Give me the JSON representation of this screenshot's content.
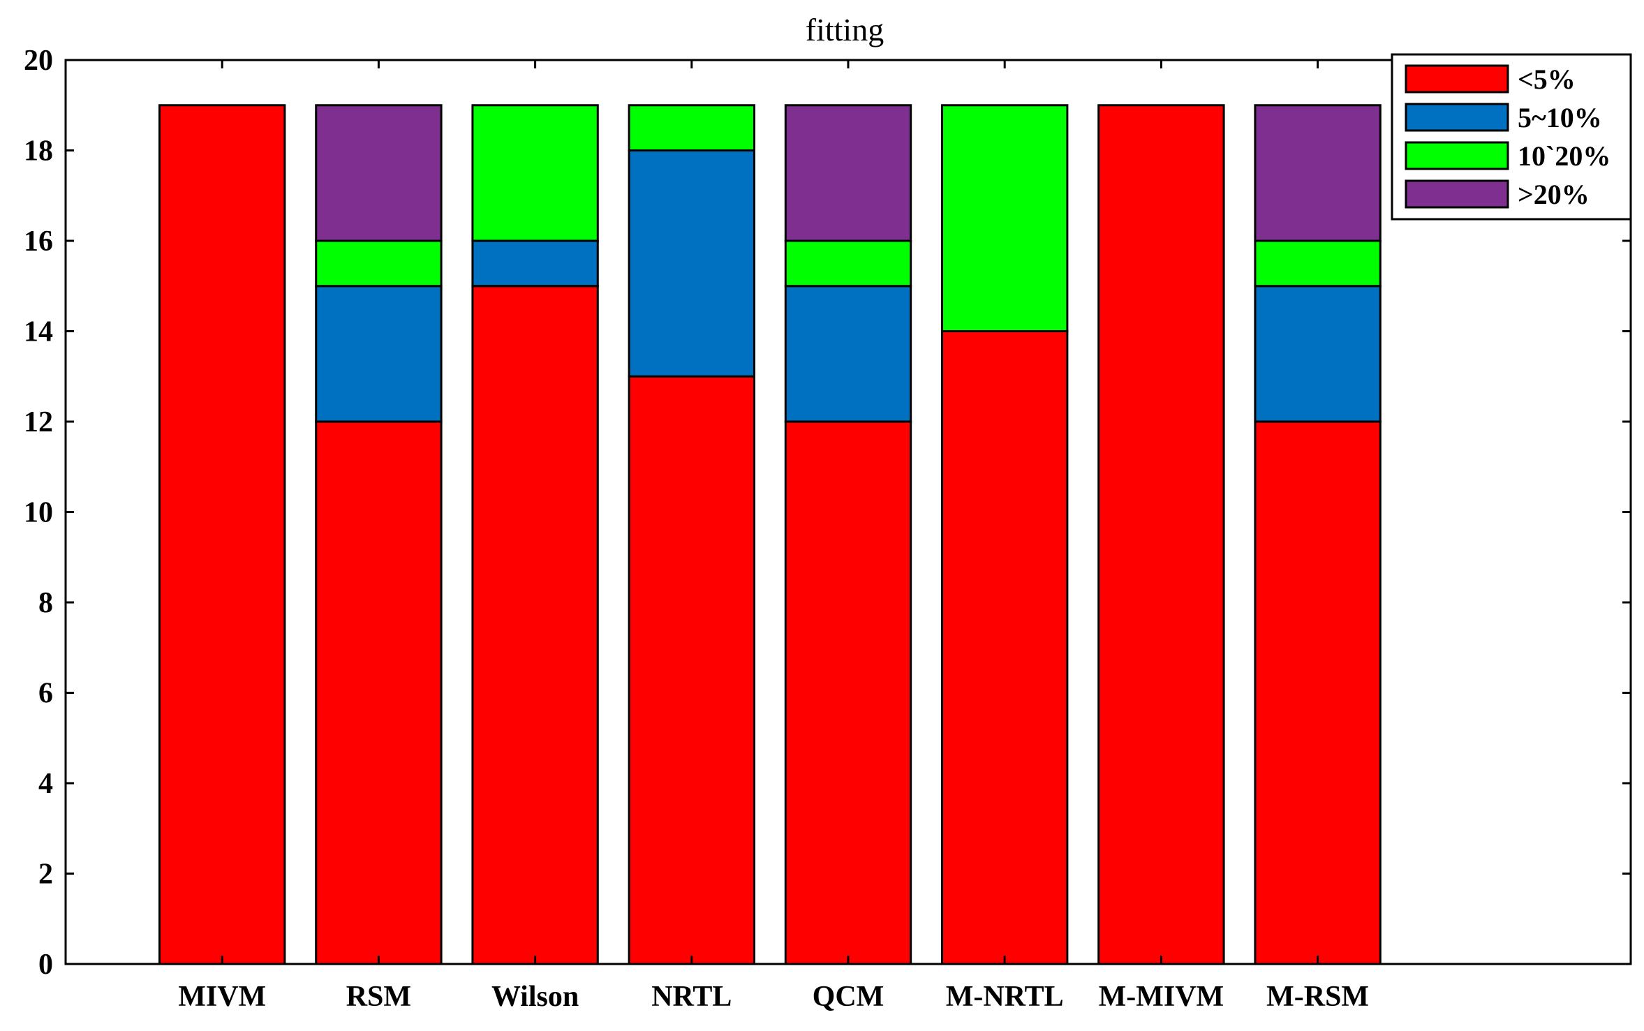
{
  "chart_data": {
    "type": "bar",
    "stacked": true,
    "title": "fitting",
    "xlabel": "",
    "ylabel": "",
    "categories": [
      "MIVM",
      "RSM",
      "Wilson",
      "NRTL",
      "QCM",
      "M-NRTL",
      "M-MIVM",
      "M-RSM"
    ],
    "series": [
      {
        "name": "<5%",
        "color": "#ff0000",
        "values": [
          19,
          12,
          15,
          13,
          12,
          14,
          19,
          12
        ]
      },
      {
        "name": "5~10%",
        "color": "#0070c0",
        "values": [
          0,
          3,
          1,
          5,
          3,
          0,
          0,
          3
        ]
      },
      {
        "name": "10`20%",
        "color": "#00ff00",
        "values": [
          0,
          1,
          3,
          1,
          1,
          5,
          0,
          1
        ]
      },
      {
        "name": ">20%",
        "color": "#7f2f8f",
        "values": [
          0,
          3,
          0,
          0,
          3,
          0,
          0,
          3
        ]
      }
    ],
    "ylim": [
      0,
      20
    ],
    "yticks": [
      0,
      2,
      4,
      6,
      8,
      10,
      12,
      14,
      16,
      18,
      20
    ],
    "xlim": [
      0,
      10
    ],
    "legend": "top-right",
    "grid": false
  }
}
